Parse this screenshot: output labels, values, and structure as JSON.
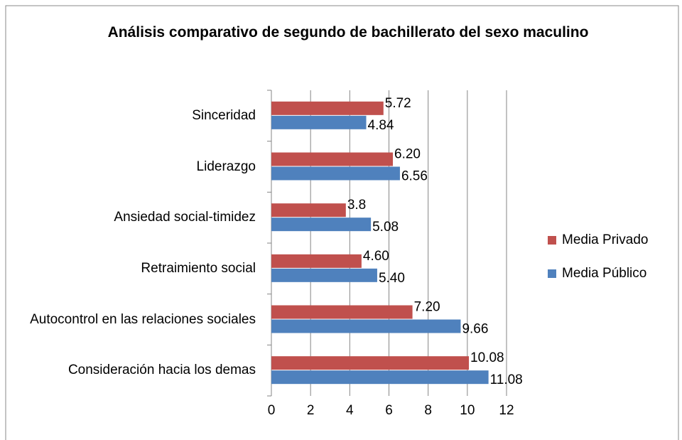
{
  "chart_data": {
    "type": "barh",
    "title": "Análisis comparativo de segundo de bachillerato del sexo maculino",
    "categories": [
      "Sinceridad",
      "Liderazgo",
      "Ansiedad social-timidez",
      "Retraimiento social",
      "Autocontrol en las relaciones sociales",
      "Consideración hacia los demas"
    ],
    "series": [
      {
        "name": "Media Privado",
        "color": "#c0504d",
        "values": [
          5.72,
          6.2,
          3.8,
          4.6,
          7.2,
          10.08
        ],
        "value_labels": [
          "5.72",
          "6.20",
          "3.8",
          "4.60",
          "7.20",
          "10.08"
        ]
      },
      {
        "name": "Media Público",
        "color": "#4f81bd",
        "values": [
          4.84,
          6.56,
          5.08,
          5.4,
          9.66,
          11.08
        ],
        "value_labels": [
          "4.84",
          "6.56",
          "5.08",
          "5.40",
          "9.66",
          "11.08"
        ]
      }
    ],
    "xlim": [
      0,
      12
    ],
    "xticks": [
      0,
      2,
      4,
      6,
      8,
      10,
      12
    ],
    "grid": true,
    "legend": "right"
  }
}
